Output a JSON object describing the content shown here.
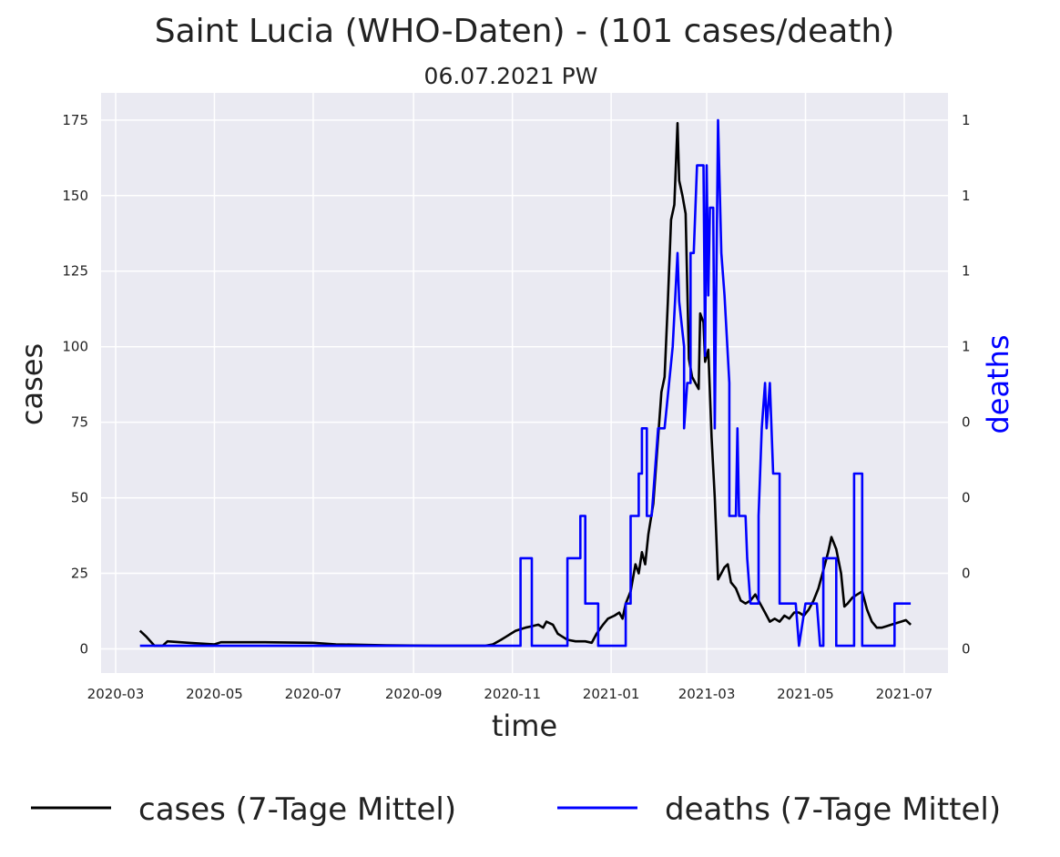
{
  "colors": {
    "plot_bg": "#eaeaf2",
    "grid": "#ffffff",
    "cases": "#000000",
    "deaths": "#0000ff",
    "text": "#222222"
  },
  "chart_data": {
    "type": "line",
    "title": "Saint Lucia (WHO-Daten) - (101 cases/death)",
    "subtitle": "06.07.2021 PW",
    "xlabel": "time",
    "ylabel": "cases",
    "y2label": "deaths",
    "x_ticks": [
      "2020-03",
      "2020-05",
      "2020-07",
      "2020-09",
      "2020-11",
      "2021-01",
      "2021-03",
      "2021-05",
      "2021-07"
    ],
    "xlim": [
      "2020-02-21",
      "2021-07-28"
    ],
    "ylim": [
      -8,
      184
    ],
    "y_ticks": [
      0,
      25,
      50,
      75,
      100,
      125,
      150,
      175
    ],
    "y2_tick_labels": [
      "0",
      "0",
      "0",
      "0",
      "1",
      "1",
      "1",
      "1"
    ],
    "grid": true,
    "legend_position": "bottom",
    "series": [
      {
        "name": "cases (7-Tage Mittel)",
        "color": "#000000",
        "points": [
          [
            "2020-03-16",
            6
          ],
          [
            "2020-03-20",
            4
          ],
          [
            "2020-03-25",
            1
          ],
          [
            "2020-03-30",
            1
          ],
          [
            "2020-04-02",
            2.5
          ],
          [
            "2020-04-15",
            2
          ],
          [
            "2020-05-01",
            1.5
          ],
          [
            "2020-05-05",
            2.2
          ],
          [
            "2020-06-01",
            2.2
          ],
          [
            "2020-07-01",
            2
          ],
          [
            "2020-07-15",
            1.5
          ],
          [
            "2020-08-15",
            1.2
          ],
          [
            "2020-09-15",
            1
          ],
          [
            "2020-10-15",
            1
          ],
          [
            "2020-10-20",
            1.5
          ],
          [
            "2020-10-25",
            3
          ],
          [
            "2020-10-28",
            4
          ],
          [
            "2020-10-31",
            5
          ],
          [
            "2020-11-03",
            6
          ],
          [
            "2020-11-06",
            6.5
          ],
          [
            "2020-11-09",
            7
          ],
          [
            "2020-11-13",
            7.5
          ],
          [
            "2020-11-17",
            8
          ],
          [
            "2020-11-20",
            7
          ],
          [
            "2020-11-22",
            9
          ],
          [
            "2020-11-26",
            8
          ],
          [
            "2020-11-29",
            5
          ],
          [
            "2020-12-02",
            4
          ],
          [
            "2020-12-05",
            3
          ],
          [
            "2020-12-10",
            2.5
          ],
          [
            "2020-12-16",
            2.5
          ],
          [
            "2020-12-20",
            2
          ],
          [
            "2020-12-23",
            5
          ],
          [
            "2020-12-27",
            8
          ],
          [
            "2020-12-30",
            10
          ],
          [
            "2021-01-03",
            11
          ],
          [
            "2021-01-06",
            12
          ],
          [
            "2021-01-08",
            10
          ],
          [
            "2021-01-10",
            15
          ],
          [
            "2021-01-13",
            19
          ],
          [
            "2021-01-16",
            28
          ],
          [
            "2021-01-18",
            25
          ],
          [
            "2021-01-20",
            32
          ],
          [
            "2021-01-22",
            28
          ],
          [
            "2021-01-24",
            38
          ],
          [
            "2021-01-27",
            48
          ],
          [
            "2021-01-30",
            70
          ],
          [
            "2021-02-01",
            85
          ],
          [
            "2021-02-03",
            90
          ],
          [
            "2021-02-05",
            115
          ],
          [
            "2021-02-07",
            142
          ],
          [
            "2021-02-09",
            147
          ],
          [
            "2021-02-11",
            174
          ],
          [
            "2021-02-12",
            155
          ],
          [
            "2021-02-14",
            150
          ],
          [
            "2021-02-16",
            144
          ],
          [
            "2021-02-18",
            96
          ],
          [
            "2021-02-20",
            90
          ],
          [
            "2021-02-22",
            88
          ],
          [
            "2021-02-24",
            86
          ],
          [
            "2021-02-25",
            111
          ],
          [
            "2021-02-27",
            108
          ],
          [
            "2021-02-28",
            95
          ],
          [
            "2021-03-02",
            99
          ],
          [
            "2021-03-04",
            70
          ],
          [
            "2021-03-06",
            50
          ],
          [
            "2021-03-08",
            23
          ],
          [
            "2021-03-10",
            25
          ],
          [
            "2021-03-12",
            27
          ],
          [
            "2021-03-14",
            28
          ],
          [
            "2021-03-16",
            22
          ],
          [
            "2021-03-19",
            20
          ],
          [
            "2021-03-22",
            16
          ],
          [
            "2021-03-25",
            15
          ],
          [
            "2021-03-28",
            16
          ],
          [
            "2021-03-31",
            18
          ],
          [
            "2021-04-03",
            15
          ],
          [
            "2021-04-06",
            12
          ],
          [
            "2021-04-09",
            9
          ],
          [
            "2021-04-12",
            10
          ],
          [
            "2021-04-15",
            9
          ],
          [
            "2021-04-18",
            11
          ],
          [
            "2021-04-21",
            10
          ],
          [
            "2021-04-24",
            12
          ],
          [
            "2021-04-27",
            12
          ],
          [
            "2021-04-30",
            11
          ],
          [
            "2021-05-03",
            13
          ],
          [
            "2021-05-06",
            16
          ],
          [
            "2021-05-09",
            20
          ],
          [
            "2021-05-12",
            26
          ],
          [
            "2021-05-15",
            32
          ],
          [
            "2021-05-17",
            37
          ],
          [
            "2021-05-20",
            33
          ],
          [
            "2021-05-23",
            25
          ],
          [
            "2021-05-25",
            14
          ],
          [
            "2021-05-27",
            15
          ],
          [
            "2021-05-30",
            17
          ],
          [
            "2021-06-02",
            18
          ],
          [
            "2021-06-05",
            19
          ],
          [
            "2021-06-08",
            13
          ],
          [
            "2021-06-11",
            9
          ],
          [
            "2021-06-14",
            7
          ],
          [
            "2021-06-17",
            7
          ],
          [
            "2021-06-20",
            7.5
          ],
          [
            "2021-06-23",
            8
          ],
          [
            "2021-06-26",
            8.5
          ],
          [
            "2021-06-29",
            9
          ],
          [
            "2021-07-02",
            9.5
          ],
          [
            "2021-07-05",
            8
          ]
        ]
      },
      {
        "name": "deaths (7-Tage Mittel)",
        "color": "#0000ff",
        "points": [
          [
            "2020-03-16",
            1
          ],
          [
            "2020-11-06",
            1
          ],
          [
            "2020-11-06",
            30
          ],
          [
            "2020-11-13",
            30
          ],
          [
            "2020-11-13",
            1
          ],
          [
            "2020-12-05",
            1
          ],
          [
            "2020-12-05",
            30
          ],
          [
            "2020-12-13",
            30
          ],
          [
            "2020-12-13",
            44
          ],
          [
            "2020-12-16",
            44
          ],
          [
            "2020-12-16",
            15
          ],
          [
            "2020-12-24",
            15
          ],
          [
            "2020-12-24",
            1
          ],
          [
            "2021-01-10",
            1
          ],
          [
            "2021-01-10",
            15
          ],
          [
            "2021-01-13",
            15
          ],
          [
            "2021-01-13",
            44
          ],
          [
            "2021-01-18",
            44
          ],
          [
            "2021-01-18",
            58
          ],
          [
            "2021-01-20",
            58
          ],
          [
            "2021-01-20",
            73
          ],
          [
            "2021-01-23",
            73
          ],
          [
            "2021-01-23",
            44
          ],
          [
            "2021-01-26",
            44
          ],
          [
            "2021-01-30",
            73
          ],
          [
            "2021-02-03",
            73
          ],
          [
            "2021-02-08",
            100
          ],
          [
            "2021-02-11",
            131
          ],
          [
            "2021-02-12",
            115
          ],
          [
            "2021-02-15",
            100
          ],
          [
            "2021-02-15",
            73
          ],
          [
            "2021-02-17",
            88
          ],
          [
            "2021-02-19",
            88
          ],
          [
            "2021-02-19",
            131
          ],
          [
            "2021-02-21",
            131
          ],
          [
            "2021-02-23",
            160
          ],
          [
            "2021-02-27",
            160
          ],
          [
            "2021-02-28",
            97
          ],
          [
            "2021-03-01",
            160
          ],
          [
            "2021-03-02",
            117
          ],
          [
            "2021-03-03",
            146
          ],
          [
            "2021-03-05",
            146
          ],
          [
            "2021-03-06",
            73
          ],
          [
            "2021-03-08",
            175
          ],
          [
            "2021-03-10",
            131
          ],
          [
            "2021-03-12",
            117
          ],
          [
            "2021-03-15",
            88
          ],
          [
            "2021-03-15",
            44
          ],
          [
            "2021-03-19",
            44
          ],
          [
            "2021-03-20",
            73
          ],
          [
            "2021-03-21",
            44
          ],
          [
            "2021-03-25",
            44
          ],
          [
            "2021-03-26",
            30
          ],
          [
            "2021-03-28",
            15
          ],
          [
            "2021-04-02",
            15
          ],
          [
            "2021-04-02",
            44
          ],
          [
            "2021-04-04",
            73
          ],
          [
            "2021-04-06",
            88
          ],
          [
            "2021-04-07",
            73
          ],
          [
            "2021-04-09",
            88
          ],
          [
            "2021-04-11",
            58
          ],
          [
            "2021-04-15",
            58
          ],
          [
            "2021-04-15",
            15
          ],
          [
            "2021-04-25",
            15
          ],
          [
            "2021-04-27",
            1
          ],
          [
            "2021-05-01",
            15
          ],
          [
            "2021-05-08",
            15
          ],
          [
            "2021-05-10",
            1
          ],
          [
            "2021-05-12",
            1
          ],
          [
            "2021-05-12",
            30
          ],
          [
            "2021-05-20",
            30
          ],
          [
            "2021-05-20",
            1
          ],
          [
            "2021-05-31",
            1
          ],
          [
            "2021-05-31",
            58
          ],
          [
            "2021-06-05",
            58
          ],
          [
            "2021-06-05",
            1
          ],
          [
            "2021-06-25",
            1
          ],
          [
            "2021-06-25",
            15
          ],
          [
            "2021-07-05",
            15
          ]
        ]
      }
    ]
  }
}
